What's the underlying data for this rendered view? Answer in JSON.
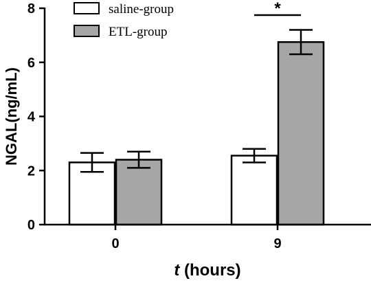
{
  "chart_data": {
    "type": "bar",
    "categories": [
      "0",
      "9"
    ],
    "series": [
      {
        "name": "saline-group",
        "values": [
          2.3,
          2.55
        ],
        "errors": [
          0.35,
          0.25
        ],
        "fill": "#ffffff"
      },
      {
        "name": "ETL-group",
        "values": [
          2.4,
          6.75
        ],
        "errors": [
          0.3,
          0.45
        ],
        "fill": "#a6a6a6"
      }
    ],
    "xlabel_italic": "t",
    "xlabel_rest": " (hours)",
    "ylabel": "NGAL(ng/mL)",
    "ylim": [
      0,
      8
    ],
    "yticks": [
      "0",
      "2",
      "4",
      "6",
      "8"
    ],
    "significance": {
      "label": "*",
      "category": "9"
    },
    "legend_position": "top-left",
    "grid": false
  }
}
